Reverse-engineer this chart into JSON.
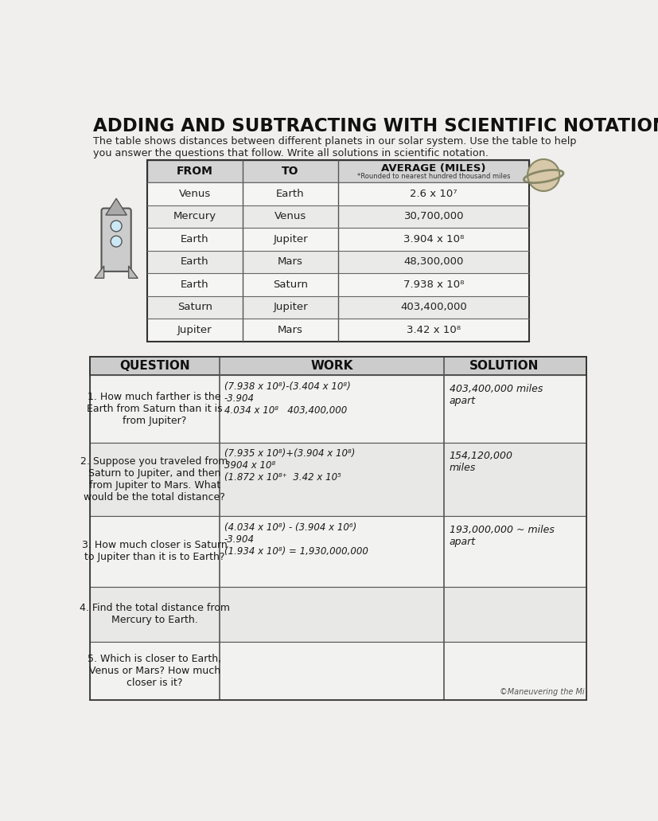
{
  "title": "ADDING AND SUBTRACTING WITH SCIENTIFIC NOTATION",
  "subtitle": "The table shows distances between different planets in our solar system. Use the table to help\nyou answer the questions that follow. Write all solutions in scientific notation.",
  "bg_color": "#e8e8e8",
  "paper_color": "#f0efed",
  "table_rows": [
    [
      "Venus",
      "Earth",
      "2.6 x 10⁷"
    ],
    [
      "Mercury",
      "Venus",
      "30,700,000"
    ],
    [
      "Earth",
      "Jupiter",
      "3.904 x 10⁸"
    ],
    [
      "Earth",
      "Mars",
      "48,300,000"
    ],
    [
      "Earth",
      "Saturn",
      "7.938 x 10⁸"
    ],
    [
      "Saturn",
      "Jupiter",
      "403,400,000"
    ],
    [
      "Jupiter",
      "Mars",
      "3.42 x 10⁸"
    ]
  ],
  "questions": [
    "1. How much farther is the\nEarth from Saturn than it is\nfrom Jupiter?",
    "2. Suppose you traveled from\nSaturn to Jupiter, and then\nfrom Jupiter to Mars. What\nwould be the total distance?",
    "3. How much closer is Saturn\nto Jupiter than it is to Earth?",
    "4. Find the total distance from\nMercury to Earth.",
    "5. Which is closer to Earth,\nVenus or Mars? How much\ncloser is it?"
  ],
  "work_content": [
    "(7.938 x 10⁸)-(3.404 x 10⁸)\n-3.904\n4.034 x 10⁸   403,400,000",
    "(7.935 x 10⁸)+(3.904 x 10⁸)\n3904 x 10⁸\n(1.872 x 10⁸⁺  3.42 x 10⁵",
    "(4.034 x 10⁸) - (3.904 x 10⁶)\n-3.904\n(1.934 x 10⁸) = 1,930,000,000",
    "",
    ""
  ],
  "solution_content": [
    "403,400,000 miles\napart",
    "154,120,000\nmiles",
    "193,000,000 ~ miles\napart",
    "",
    ""
  ],
  "q_row_heights": [
    110,
    120,
    115,
    90,
    95
  ],
  "copyright": "©Maneuvering the Mi"
}
